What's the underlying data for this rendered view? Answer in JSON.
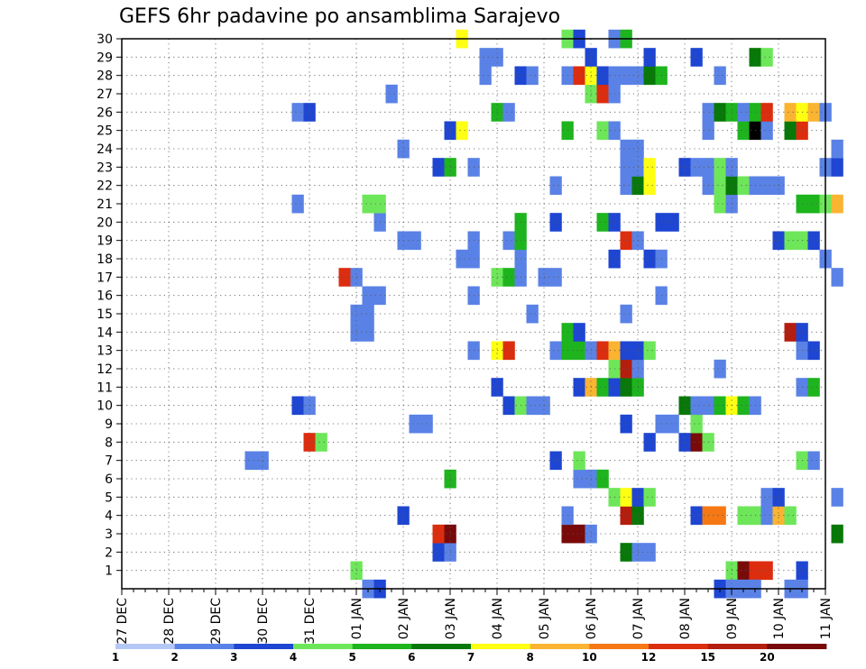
{
  "chart_data": {
    "type": "heatmap",
    "title": "GEFS 6hr padavine po ansamblima Sarajevo",
    "y_categories": [
      "1",
      "2",
      "3",
      "4",
      "5",
      "6",
      "7",
      "8",
      "9",
      "10",
      "11",
      "12",
      "13",
      "14",
      "15",
      "16",
      "17",
      "18",
      "19",
      "20",
      "21",
      "22",
      "23",
      "24",
      "25",
      "26",
      "27",
      "28",
      "29",
      "30"
    ],
    "x_labels": [
      "27 DEC",
      "28 DEC",
      "29 DEC",
      "30 DEC",
      "31 DEC",
      "01 JAN",
      "02 JAN",
      "03 JAN",
      "04 JAN",
      "05 JAN",
      "06 JAN",
      "07 JAN",
      "08 JAN",
      "09 JAN",
      "10 JAN",
      "11 JAN"
    ],
    "x_unit": "6h steps from 27 DEC 00Z",
    "grid": "dotted",
    "colorbar": {
      "ticks": [
        "1",
        "2",
        "3",
        "4",
        "5",
        "6",
        "7",
        "8",
        "10",
        "12",
        "15",
        "20"
      ],
      "colors": [
        "#b4c8f5",
        "#5a82e6",
        "#1e46d2",
        "#6ee65a",
        "#1eb41e",
        "#087808",
        "#ffff14",
        "#fab432",
        "#f57814",
        "#dc2d0f",
        "#b41e0f",
        "#780a0a"
      ]
    },
    "cells": [
      [
        1,
        20,
        3
      ],
      [
        1,
        52,
        3
      ],
      [
        1,
        53,
        11
      ],
      [
        1,
        54,
        9
      ],
      [
        1,
        55,
        9
      ],
      [
        1,
        58,
        2
      ],
      [
        2,
        27,
        2
      ],
      [
        2,
        28,
        1
      ],
      [
        2,
        43,
        5
      ],
      [
        2,
        44,
        1
      ],
      [
        2,
        45,
        1
      ],
      [
        3,
        27,
        9
      ],
      [
        3,
        28,
        11
      ],
      [
        3,
        38,
        11
      ],
      [
        3,
        39,
        11
      ],
      [
        3,
        40,
        1
      ],
      [
        3,
        61,
        5
      ],
      [
        4,
        24,
        2
      ],
      [
        4,
        38,
        1
      ],
      [
        4,
        43,
        10
      ],
      [
        4,
        44,
        5
      ],
      [
        4,
        49,
        2
      ],
      [
        4,
        50,
        8
      ],
      [
        4,
        51,
        8
      ],
      [
        4,
        53,
        3
      ],
      [
        4,
        54,
        3
      ],
      [
        4,
        55,
        1
      ],
      [
        4,
        56,
        7
      ],
      [
        4,
        57,
        3
      ],
      [
        5,
        42,
        3
      ],
      [
        5,
        43,
        6
      ],
      [
        5,
        44,
        2
      ],
      [
        5,
        45,
        3
      ],
      [
        5,
        55,
        1
      ],
      [
        5,
        56,
        2
      ],
      [
        5,
        61,
        1
      ],
      [
        6,
        28,
        4
      ],
      [
        6,
        39,
        1
      ],
      [
        6,
        40,
        1
      ],
      [
        6,
        41,
        4
      ],
      [
        7,
        11,
        1
      ],
      [
        7,
        12,
        1
      ],
      [
        7,
        37,
        2
      ],
      [
        7,
        39,
        3
      ],
      [
        7,
        58,
        3
      ],
      [
        7,
        59,
        1
      ],
      [
        8,
        16,
        9
      ],
      [
        8,
        17,
        3
      ],
      [
        8,
        45,
        2
      ],
      [
        8,
        48,
        2
      ],
      [
        8,
        49,
        11
      ],
      [
        8,
        50,
        3
      ],
      [
        9,
        25,
        1
      ],
      [
        9,
        26,
        1
      ],
      [
        9,
        43,
        2
      ],
      [
        9,
        46,
        1
      ],
      [
        9,
        47,
        1
      ],
      [
        9,
        49,
        3
      ],
      [
        10,
        15,
        2
      ],
      [
        10,
        16,
        1
      ],
      [
        10,
        33,
        2
      ],
      [
        10,
        34,
        3
      ],
      [
        10,
        35,
        1
      ],
      [
        10,
        36,
        1
      ],
      [
        10,
        48,
        5
      ],
      [
        10,
        49,
        1
      ],
      [
        10,
        50,
        1
      ],
      [
        10,
        51,
        4
      ],
      [
        10,
        52,
        6
      ],
      [
        10,
        53,
        4
      ],
      [
        10,
        54,
        1
      ],
      [
        11,
        32,
        2
      ],
      [
        11,
        39,
        2
      ],
      [
        11,
        40,
        7
      ],
      [
        11,
        41,
        4
      ],
      [
        11,
        42,
        2
      ],
      [
        11,
        43,
        5
      ],
      [
        11,
        44,
        4
      ],
      [
        11,
        58,
        1
      ],
      [
        11,
        59,
        4
      ],
      [
        12,
        42,
        3
      ],
      [
        12,
        43,
        10
      ],
      [
        12,
        44,
        1
      ],
      [
        12,
        51,
        1
      ],
      [
        13,
        30,
        1
      ],
      [
        13,
        32,
        6
      ],
      [
        13,
        33,
        9
      ],
      [
        13,
        37,
        1
      ],
      [
        13,
        38,
        4
      ],
      [
        13,
        39,
        4
      ],
      [
        13,
        40,
        1
      ],
      [
        13,
        41,
        9
      ],
      [
        13,
        42,
        7
      ],
      [
        13,
        43,
        2
      ],
      [
        13,
        44,
        2
      ],
      [
        13,
        45,
        3
      ],
      [
        13,
        58,
        1
      ],
      [
        13,
        59,
        2
      ],
      [
        14,
        20,
        1
      ],
      [
        14,
        21,
        1
      ],
      [
        14,
        38,
        4
      ],
      [
        14,
        39,
        2
      ],
      [
        14,
        57,
        10
      ],
      [
        14,
        58,
        2
      ],
      [
        15,
        20,
        1
      ],
      [
        15,
        21,
        1
      ],
      [
        15,
        35,
        1
      ],
      [
        15,
        43,
        1
      ],
      [
        16,
        21,
        1
      ],
      [
        16,
        22,
        1
      ],
      [
        16,
        30,
        1
      ],
      [
        16,
        46,
        1
      ],
      [
        17,
        19,
        9
      ],
      [
        17,
        20,
        1
      ],
      [
        17,
        32,
        3
      ],
      [
        17,
        33,
        4
      ],
      [
        17,
        34,
        1
      ],
      [
        17,
        36,
        1
      ],
      [
        17,
        37,
        1
      ],
      [
        17,
        61,
        1
      ],
      [
        18,
        29,
        1
      ],
      [
        18,
        30,
        1
      ],
      [
        18,
        34,
        1
      ],
      [
        18,
        42,
        2
      ],
      [
        18,
        45,
        2
      ],
      [
        18,
        46,
        1
      ],
      [
        18,
        60,
        1
      ],
      [
        19,
        24,
        1
      ],
      [
        19,
        25,
        1
      ],
      [
        19,
        30,
        1
      ],
      [
        19,
        33,
        1
      ],
      [
        19,
        34,
        4
      ],
      [
        19,
        43,
        9
      ],
      [
        19,
        44,
        1
      ],
      [
        19,
        56,
        2
      ],
      [
        19,
        57,
        3
      ],
      [
        19,
        58,
        3
      ],
      [
        19,
        59,
        2
      ],
      [
        20,
        22,
        1
      ],
      [
        20,
        34,
        4
      ],
      [
        20,
        37,
        2
      ],
      [
        20,
        41,
        4
      ],
      [
        20,
        42,
        2
      ],
      [
        20,
        46,
        2
      ],
      [
        20,
        47,
        2
      ],
      [
        21,
        15,
        1
      ],
      [
        21,
        21,
        3
      ],
      [
        21,
        22,
        3
      ],
      [
        21,
        51,
        3
      ],
      [
        21,
        52,
        1
      ],
      [
        21,
        58,
        4
      ],
      [
        21,
        59,
        4
      ],
      [
        21,
        60,
        3
      ],
      [
        21,
        61,
        7
      ],
      [
        22,
        37,
        1
      ],
      [
        22,
        43,
        1
      ],
      [
        22,
        44,
        5
      ],
      [
        22,
        45,
        6
      ],
      [
        22,
        50,
        1
      ],
      [
        22,
        51,
        3
      ],
      [
        22,
        52,
        5
      ],
      [
        22,
        53,
        3
      ],
      [
        22,
        54,
        1
      ],
      [
        22,
        55,
        1
      ],
      [
        22,
        56,
        1
      ],
      [
        23,
        27,
        2
      ],
      [
        23,
        28,
        4
      ],
      [
        23,
        30,
        1
      ],
      [
        23,
        43,
        1
      ],
      [
        23,
        44,
        1
      ],
      [
        23,
        45,
        6
      ],
      [
        23,
        48,
        2
      ],
      [
        23,
        49,
        1
      ],
      [
        23,
        50,
        1
      ],
      [
        23,
        51,
        3
      ],
      [
        23,
        52,
        1
      ],
      [
        23,
        60,
        1
      ],
      [
        23,
        61,
        2
      ],
      [
        24,
        24,
        1
      ],
      [
        24,
        43,
        1
      ],
      [
        24,
        44,
        1
      ],
      [
        24,
        61,
        1
      ],
      [
        25,
        28,
        2
      ],
      [
        25,
        29,
        6
      ],
      [
        25,
        38,
        4
      ],
      [
        25,
        41,
        3
      ],
      [
        25,
        42,
        1
      ],
      [
        25,
        50,
        1
      ],
      [
        25,
        53,
        4
      ],
      [
        25,
        54,
        12
      ],
      [
        25,
        55,
        1
      ],
      [
        25,
        57,
        5
      ],
      [
        25,
        58,
        9
      ],
      [
        26,
        15,
        1
      ],
      [
        26,
        16,
        2
      ],
      [
        26,
        32,
        4
      ],
      [
        26,
        33,
        1
      ],
      [
        26,
        50,
        1
      ],
      [
        26,
        51,
        5
      ],
      [
        26,
        52,
        4
      ],
      [
        26,
        53,
        1
      ],
      [
        26,
        54,
        4
      ],
      [
        26,
        55,
        9
      ],
      [
        26,
        57,
        7
      ],
      [
        26,
        58,
        6
      ],
      [
        26,
        59,
        7
      ],
      [
        26,
        60,
        1
      ],
      [
        27,
        23,
        1
      ],
      [
        27,
        40,
        3
      ],
      [
        27,
        41,
        9
      ],
      [
        27,
        42,
        1
      ],
      [
        28,
        31,
        1
      ],
      [
        28,
        34,
        2
      ],
      [
        28,
        35,
        1
      ],
      [
        28,
        38,
        1
      ],
      [
        28,
        39,
        9
      ],
      [
        28,
        40,
        6
      ],
      [
        28,
        41,
        2
      ],
      [
        28,
        42,
        1
      ],
      [
        28,
        43,
        1
      ],
      [
        28,
        44,
        1
      ],
      [
        28,
        45,
        5
      ],
      [
        28,
        46,
        4
      ],
      [
        28,
        51,
        1
      ],
      [
        29,
        31,
        1
      ],
      [
        29,
        32,
        1
      ],
      [
        29,
        40,
        2
      ],
      [
        29,
        45,
        2
      ],
      [
        29,
        49,
        2
      ],
      [
        29,
        54,
        5
      ],
      [
        29,
        55,
        3
      ],
      [
        30,
        29,
        6
      ],
      [
        30,
        38,
        3
      ],
      [
        30,
        39,
        2
      ],
      [
        30,
        42,
        1
      ],
      [
        30,
        43,
        4
      ],
      [
        0,
        21,
        1
      ],
      [
        0,
        22,
        2
      ],
      [
        0,
        51,
        2
      ],
      [
        0,
        52,
        1
      ],
      [
        0,
        53,
        1
      ],
      [
        0,
        54,
        1
      ],
      [
        0,
        57,
        1
      ],
      [
        0,
        58,
        1
      ]
    ]
  }
}
